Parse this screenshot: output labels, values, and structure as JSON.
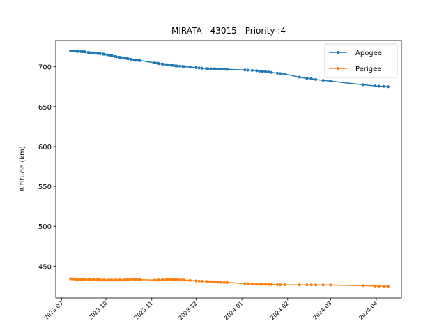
{
  "chart_data": {
    "type": "line",
    "title": "MIRATA - 43015 - Priority :4",
    "xlabel": "",
    "ylabel": "Altitude (km)",
    "ylim": [
      410,
      733
    ],
    "xlim": [
      "2023-08-28",
      "2024-04-18"
    ],
    "yticks": [
      450,
      500,
      550,
      600,
      650,
      700
    ],
    "xticks": [
      "2023-09",
      "2023-10",
      "2023-11",
      "2023-12",
      "2024-01",
      "2024-02",
      "2024-03",
      "2024-04"
    ],
    "legend": {
      "position": "top-right",
      "entries": [
        "Apogee",
        "Perigee"
      ]
    },
    "grid": false,
    "series": [
      {
        "name": "Apogee",
        "color": "#1f77b4",
        "points": [
          [
            "2023-09-07",
            720
          ],
          [
            "2023-09-08",
            720
          ],
          [
            "2023-09-09",
            719.8
          ],
          [
            "2023-09-11",
            719.5
          ],
          [
            "2023-09-12",
            719.3
          ],
          [
            "2023-09-14",
            719.2
          ],
          [
            "2023-09-15",
            719
          ],
          [
            "2023-09-16",
            719
          ],
          [
            "2023-09-17",
            718.8
          ],
          [
            "2023-09-19",
            718
          ],
          [
            "2023-09-20",
            717.8
          ],
          [
            "2023-09-22",
            717.5
          ],
          [
            "2023-09-23",
            717.3
          ],
          [
            "2023-09-25",
            717
          ],
          [
            "2023-09-26",
            716.8
          ],
          [
            "2023-09-27",
            716.5
          ],
          [
            "2023-09-29",
            716
          ],
          [
            "2023-09-30",
            715.7
          ],
          [
            "2023-10-02",
            715
          ],
          [
            "2023-10-04",
            714.5
          ],
          [
            "2023-10-05",
            714
          ],
          [
            "2023-10-07",
            713
          ],
          [
            "2023-10-08",
            712.5
          ],
          [
            "2023-10-10",
            712
          ],
          [
            "2023-10-11",
            711.8
          ],
          [
            "2023-10-13",
            711
          ],
          [
            "2023-10-15",
            710.5
          ],
          [
            "2023-10-16",
            710
          ],
          [
            "2023-10-18",
            709.5
          ],
          [
            "2023-10-20",
            708.5
          ],
          [
            "2023-10-21",
            708.2
          ],
          [
            "2023-10-23",
            708
          ],
          [
            "2023-10-24",
            707.8
          ],
          [
            "2023-11-03",
            705
          ],
          [
            "2023-11-05",
            704.5
          ],
          [
            "2023-11-06",
            704
          ],
          [
            "2023-11-08",
            703.5
          ],
          [
            "2023-11-09",
            703.2
          ],
          [
            "2023-11-11",
            702.8
          ],
          [
            "2023-11-12",
            702.5
          ],
          [
            "2023-11-14",
            702
          ],
          [
            "2023-11-15",
            701.7
          ],
          [
            "2023-11-17",
            701.3
          ],
          [
            "2023-11-18",
            701
          ],
          [
            "2023-11-20",
            700.8
          ],
          [
            "2023-11-22",
            700.5
          ],
          [
            "2023-11-23",
            700.3
          ],
          [
            "2023-11-27",
            699.5
          ],
          [
            "2023-12-01",
            699
          ],
          [
            "2023-12-03",
            698.5
          ],
          [
            "2023-12-05",
            698.2
          ],
          [
            "2023-12-08",
            697.8
          ],
          [
            "2023-12-09",
            697.6
          ],
          [
            "2023-12-11",
            697.5
          ],
          [
            "2023-12-13",
            697.4
          ],
          [
            "2023-12-14",
            697.3
          ],
          [
            "2023-12-16",
            697.2
          ],
          [
            "2023-12-18",
            697.2
          ],
          [
            "2023-12-20",
            697
          ],
          [
            "2023-12-22",
            696.8
          ],
          [
            "2024-01-03",
            696
          ],
          [
            "2024-01-05",
            695.8
          ],
          [
            "2024-01-08",
            695.5
          ],
          [
            "2024-01-11",
            695
          ],
          [
            "2024-01-13",
            694.6
          ],
          [
            "2024-01-15",
            694.3
          ],
          [
            "2024-01-17",
            694
          ],
          [
            "2024-01-19",
            693.5
          ],
          [
            "2024-01-21",
            693
          ],
          [
            "2024-01-25",
            692
          ],
          [
            "2024-01-27",
            691.5
          ],
          [
            "2024-01-30",
            691
          ],
          [
            "2024-02-09",
            687
          ],
          [
            "2024-02-14",
            685.5
          ],
          [
            "2024-02-17",
            685
          ],
          [
            "2024-02-20",
            684
          ],
          [
            "2024-02-25",
            683
          ],
          [
            "2024-03-01",
            682
          ],
          [
            "2024-03-23",
            677.5
          ],
          [
            "2024-03-31",
            676
          ],
          [
            "2024-04-03",
            675.7
          ],
          [
            "2024-04-06",
            675.5
          ],
          [
            "2024-04-09",
            675
          ]
        ]
      },
      {
        "name": "Perigee",
        "color": "#ff7f0e",
        "points": [
          [
            "2023-09-07",
            434
          ],
          [
            "2023-09-08",
            434
          ],
          [
            "2023-09-09",
            433.8
          ],
          [
            "2023-09-11",
            433.3
          ],
          [
            "2023-09-12",
            433.2
          ],
          [
            "2023-09-14",
            433.2
          ],
          [
            "2023-09-15",
            433.1
          ],
          [
            "2023-09-16",
            433.1
          ],
          [
            "2023-09-17",
            433.1
          ],
          [
            "2023-09-19",
            433
          ],
          [
            "2023-09-20",
            433
          ],
          [
            "2023-09-22",
            433
          ],
          [
            "2023-09-23",
            433
          ],
          [
            "2023-09-25",
            433
          ],
          [
            "2023-09-26",
            433
          ],
          [
            "2023-09-27",
            432.8
          ],
          [
            "2023-09-29",
            432.5
          ],
          [
            "2023-09-30",
            432.5
          ],
          [
            "2023-10-02",
            432.5
          ],
          [
            "2023-10-04",
            432.5
          ],
          [
            "2023-10-05",
            432.5
          ],
          [
            "2023-10-07",
            432.5
          ],
          [
            "2023-10-08",
            432.5
          ],
          [
            "2023-10-10",
            432.5
          ],
          [
            "2023-10-11",
            432.5
          ],
          [
            "2023-10-13",
            432.6
          ],
          [
            "2023-10-15",
            432.8
          ],
          [
            "2023-10-16",
            433
          ],
          [
            "2023-10-18",
            433.2
          ],
          [
            "2023-10-20",
            433.2
          ],
          [
            "2023-10-21",
            433.1
          ],
          [
            "2023-10-23",
            433
          ],
          [
            "2023-10-24",
            433
          ],
          [
            "2023-11-03",
            432.5
          ],
          [
            "2023-11-05",
            432.5
          ],
          [
            "2023-11-06",
            432.5
          ],
          [
            "2023-11-08",
            432.6
          ],
          [
            "2023-11-09",
            432.8
          ],
          [
            "2023-11-11",
            433
          ],
          [
            "2023-11-12",
            433.1
          ],
          [
            "2023-11-14",
            433.1
          ],
          [
            "2023-11-15",
            433.1
          ],
          [
            "2023-11-17",
            433
          ],
          [
            "2023-11-18",
            433
          ],
          [
            "2023-11-20",
            432.9
          ],
          [
            "2023-11-22",
            432.8
          ],
          [
            "2023-11-23",
            432.5
          ],
          [
            "2023-11-27",
            432
          ],
          [
            "2023-12-01",
            431.5
          ],
          [
            "2023-12-03",
            431.2
          ],
          [
            "2023-12-05",
            431
          ],
          [
            "2023-12-08",
            430.8
          ],
          [
            "2023-12-09",
            430.5
          ],
          [
            "2023-12-11",
            430.3
          ],
          [
            "2023-12-13",
            430.2
          ],
          [
            "2023-12-14",
            430
          ],
          [
            "2023-12-16",
            429.8
          ],
          [
            "2023-12-18",
            429.6
          ],
          [
            "2023-12-20",
            429.5
          ],
          [
            "2023-12-22",
            429.4
          ],
          [
            "2024-01-03",
            428
          ],
          [
            "2024-01-05",
            427.8
          ],
          [
            "2024-01-08",
            427.5
          ],
          [
            "2024-01-11",
            427.3
          ],
          [
            "2024-01-13",
            427.2
          ],
          [
            "2024-01-15",
            427.2
          ],
          [
            "2024-01-17",
            427.1
          ],
          [
            "2024-01-19",
            427
          ],
          [
            "2024-01-21",
            426.8
          ],
          [
            "2024-01-25",
            426.6
          ],
          [
            "2024-01-27",
            426.5
          ],
          [
            "2024-01-30",
            426.5
          ],
          [
            "2024-02-09",
            426.5
          ],
          [
            "2024-02-14",
            426.5
          ],
          [
            "2024-02-17",
            426.4
          ],
          [
            "2024-02-20",
            426.4
          ],
          [
            "2024-02-25",
            426.3
          ],
          [
            "2024-03-01",
            426.3
          ],
          [
            "2024-03-23",
            425.5
          ],
          [
            "2024-03-31",
            425
          ],
          [
            "2024-04-03",
            424.8
          ],
          [
            "2024-04-06",
            424.7
          ],
          [
            "2024-04-09",
            424.6
          ]
        ]
      }
    ]
  }
}
